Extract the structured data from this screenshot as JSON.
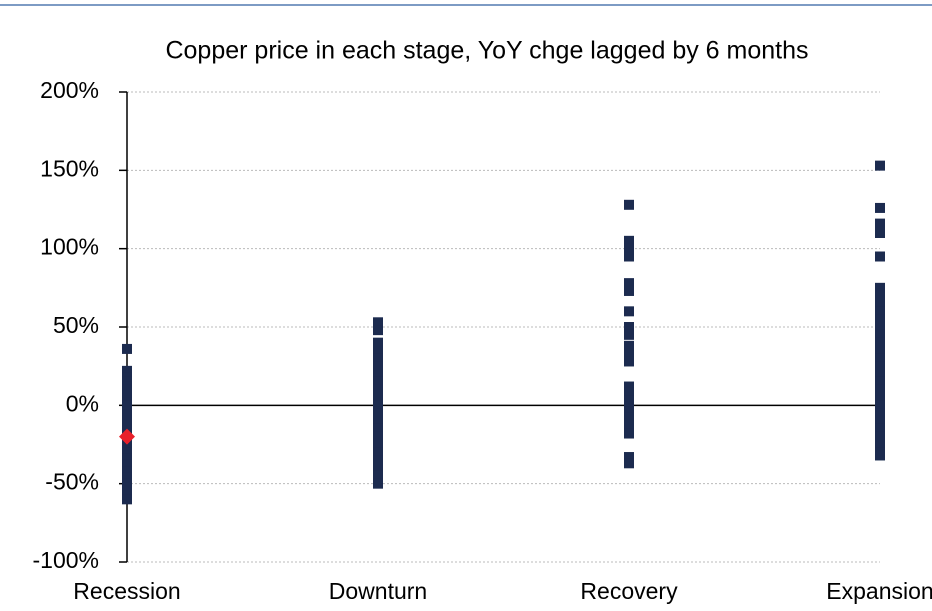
{
  "chart_data": {
    "type": "strip",
    "title": "Copper price in each stage, YoY chge lagged by 6 months",
    "categories": [
      "Recession",
      "Downturn",
      "Recovery",
      "Expansion"
    ],
    "color": "#1c2b4f",
    "values": [
      [
        36,
        22,
        18,
        15,
        12,
        10,
        5,
        2,
        0,
        -3,
        -6,
        -10,
        -14,
        -18,
        -22,
        -26,
        -30,
        -34,
        -38,
        -42,
        -46,
        -50,
        -55,
        -60
      ],
      [
        53,
        48,
        40,
        35,
        30,
        25,
        20,
        15,
        10,
        5,
        0,
        -5,
        -10,
        -15,
        -20,
        -25,
        -30,
        -35,
        -40,
        -45,
        -50
      ],
      [
        128,
        105,
        100,
        95,
        78,
        73,
        60,
        50,
        45,
        38,
        32,
        28,
        12,
        8,
        3,
        -2,
        -8,
        -13,
        -18,
        -33,
        -37
      ],
      [
        153,
        126,
        116,
        110,
        95,
        75,
        70,
        65,
        60,
        55,
        50,
        45,
        40,
        35,
        30,
        25,
        20,
        15,
        10,
        5,
        0,
        -5,
        -10,
        -15,
        -20,
        -25,
        -30,
        -32
      ]
    ],
    "highlight": {
      "color": "#e8202a",
      "values": [
        [
          -20
        ],
        [],
        [],
        []
      ]
    },
    "ylim": [
      -100,
      200
    ],
    "yticks": [
      {
        "value": -100,
        "label": "-100%"
      },
      {
        "value": -50,
        "label": "-50%"
      },
      {
        "value": 0,
        "label": "0%"
      },
      {
        "value": 50,
        "label": "50%"
      },
      {
        "value": 100,
        "label": "100%"
      },
      {
        "value": 150,
        "label": "150%"
      },
      {
        "value": 200,
        "label": "200%"
      }
    ],
    "grid": true
  }
}
